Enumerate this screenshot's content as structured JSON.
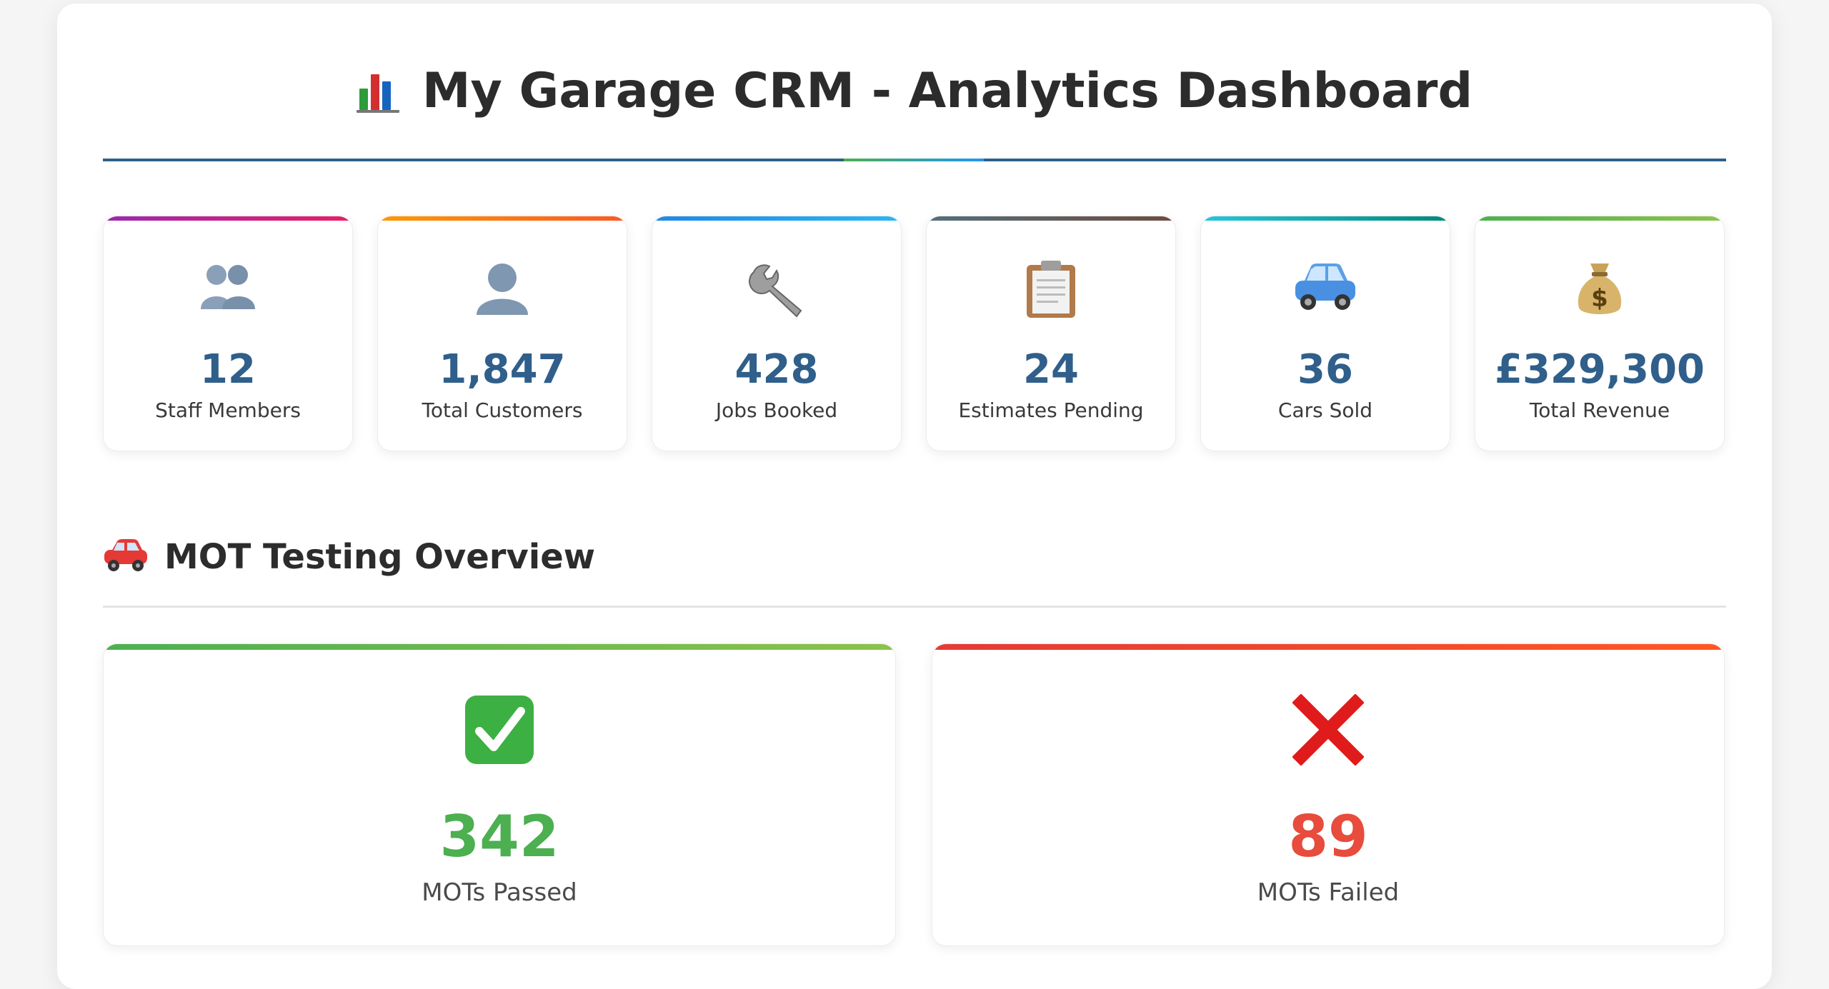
{
  "header": {
    "title": "My Garage CRM - Analytics Dashboard",
    "icon": "bar-chart-icon"
  },
  "stats": [
    {
      "value": "12",
      "label": "Staff Members",
      "icon": "people-icon",
      "color": "#c2185b"
    },
    {
      "value": "1,847",
      "label": "Total Customers",
      "icon": "person-icon",
      "color": "#f57c00"
    },
    {
      "value": "428",
      "label": "Jobs Booked",
      "icon": "wrench-icon",
      "color": "#1e88e5"
    },
    {
      "value": "24",
      "label": "Estimates Pending",
      "icon": "clipboard-icon",
      "color": "#6d5a4a"
    },
    {
      "value": "36",
      "label": "Cars Sold",
      "icon": "car-icon",
      "color": "#00a3a3"
    },
    {
      "value": "£329,300",
      "label": "Total Revenue",
      "icon": "money-bag-icon",
      "color": "#6abf4b"
    }
  ],
  "mot": {
    "title": "MOT Testing Overview",
    "passed": {
      "value": "342",
      "label": "MOTs Passed",
      "color": "#4caf50",
      "icon": "check-icon"
    },
    "failed": {
      "value": "89",
      "label": "MOTs Failed",
      "color": "#e74c3c",
      "icon": "cross-icon"
    }
  }
}
